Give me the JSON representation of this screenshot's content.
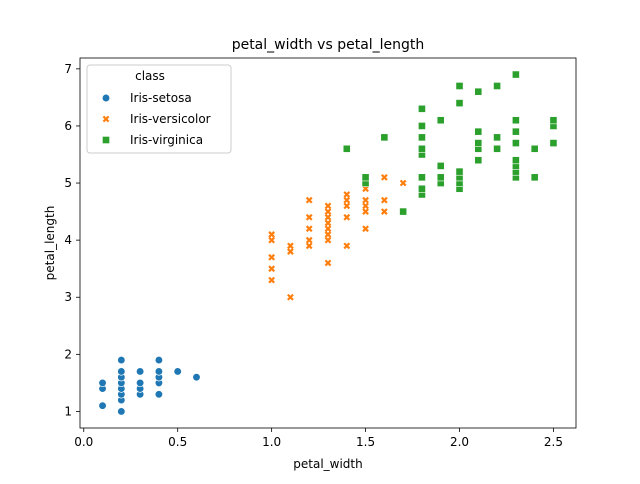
{
  "chart_data": {
    "type": "scatter",
    "title": "petal_width vs petal_length",
    "xlabel": "petal_width",
    "ylabel": "petal_length",
    "xlim": [
      -0.02,
      2.62
    ],
    "ylim": [
      0.71,
      7.19
    ],
    "xticks": [
      0.0,
      0.5,
      1.0,
      1.5,
      2.0,
      2.5
    ],
    "xtick_labels": [
      "0.0",
      "0.5",
      "1.0",
      "1.5",
      "2.0",
      "2.5"
    ],
    "yticks": [
      1,
      2,
      3,
      4,
      5,
      6,
      7
    ],
    "ytick_labels": [
      "1",
      "2",
      "3",
      "4",
      "5",
      "6",
      "7"
    ],
    "grid": false,
    "legend": {
      "title": "class",
      "placement": "top-left"
    },
    "series": [
      {
        "name": "Iris-setosa",
        "marker": "circle",
        "color": "#1f77b4",
        "points": [
          [
            0.1,
            1.1
          ],
          [
            0.1,
            1.4
          ],
          [
            0.1,
            1.5
          ],
          [
            0.2,
            1.0
          ],
          [
            0.2,
            1.2
          ],
          [
            0.2,
            1.3
          ],
          [
            0.2,
            1.4
          ],
          [
            0.2,
            1.5
          ],
          [
            0.2,
            1.6
          ],
          [
            0.2,
            1.7
          ],
          [
            0.2,
            1.9
          ],
          [
            0.3,
            1.3
          ],
          [
            0.3,
            1.4
          ],
          [
            0.3,
            1.5
          ],
          [
            0.3,
            1.7
          ],
          [
            0.4,
            1.3
          ],
          [
            0.4,
            1.5
          ],
          [
            0.4,
            1.6
          ],
          [
            0.4,
            1.7
          ],
          [
            0.4,
            1.9
          ],
          [
            0.5,
            1.7
          ],
          [
            0.6,
            1.6
          ]
        ]
      },
      {
        "name": "Iris-versicolor",
        "marker": "x",
        "color": "#ff7f0e",
        "points": [
          [
            1.0,
            3.3
          ],
          [
            1.0,
            3.5
          ],
          [
            1.0,
            3.7
          ],
          [
            1.0,
            4.0
          ],
          [
            1.0,
            4.1
          ],
          [
            1.1,
            3.0
          ],
          [
            1.1,
            3.8
          ],
          [
            1.1,
            3.9
          ],
          [
            1.2,
            3.9
          ],
          [
            1.2,
            4.0
          ],
          [
            1.2,
            4.2
          ],
          [
            1.2,
            4.4
          ],
          [
            1.2,
            4.7
          ],
          [
            1.3,
            3.6
          ],
          [
            1.3,
            4.0
          ],
          [
            1.3,
            4.1
          ],
          [
            1.3,
            4.2
          ],
          [
            1.3,
            4.3
          ],
          [
            1.3,
            4.4
          ],
          [
            1.3,
            4.5
          ],
          [
            1.3,
            4.6
          ],
          [
            1.4,
            3.9
          ],
          [
            1.4,
            4.4
          ],
          [
            1.4,
            4.6
          ],
          [
            1.4,
            4.7
          ],
          [
            1.4,
            4.8
          ],
          [
            1.5,
            4.2
          ],
          [
            1.5,
            4.5
          ],
          [
            1.5,
            4.6
          ],
          [
            1.5,
            4.7
          ],
          [
            1.5,
            4.9
          ],
          [
            1.5,
            5.0
          ],
          [
            1.6,
            4.5
          ],
          [
            1.6,
            4.7
          ],
          [
            1.6,
            5.1
          ],
          [
            1.7,
            5.0
          ]
        ]
      },
      {
        "name": "Iris-virginica",
        "marker": "square",
        "color": "#2ca02c",
        "points": [
          [
            1.4,
            5.6
          ],
          [
            1.5,
            5.0
          ],
          [
            1.5,
            5.1
          ],
          [
            1.6,
            5.8
          ],
          [
            1.7,
            4.5
          ],
          [
            1.8,
            4.8
          ],
          [
            1.8,
            4.9
          ],
          [
            1.8,
            5.1
          ],
          [
            1.8,
            5.5
          ],
          [
            1.8,
            5.6
          ],
          [
            1.8,
            5.8
          ],
          [
            1.8,
            6.0
          ],
          [
            1.8,
            6.3
          ],
          [
            1.9,
            5.0
          ],
          [
            1.9,
            5.1
          ],
          [
            1.9,
            5.3
          ],
          [
            1.9,
            6.1
          ],
          [
            2.0,
            4.9
          ],
          [
            2.0,
            5.0
          ],
          [
            2.0,
            5.1
          ],
          [
            2.0,
            5.2
          ],
          [
            2.0,
            6.4
          ],
          [
            2.0,
            6.7
          ],
          [
            2.1,
            5.4
          ],
          [
            2.1,
            5.6
          ],
          [
            2.1,
            5.7
          ],
          [
            2.1,
            5.9
          ],
          [
            2.1,
            6.6
          ],
          [
            2.2,
            5.6
          ],
          [
            2.2,
            5.8
          ],
          [
            2.2,
            6.7
          ],
          [
            2.3,
            5.1
          ],
          [
            2.3,
            5.2
          ],
          [
            2.3,
            5.3
          ],
          [
            2.3,
            5.4
          ],
          [
            2.3,
            5.7
          ],
          [
            2.3,
            5.9
          ],
          [
            2.3,
            6.1
          ],
          [
            2.3,
            6.9
          ],
          [
            2.4,
            5.1
          ],
          [
            2.4,
            5.6
          ],
          [
            2.5,
            5.7
          ],
          [
            2.5,
            6.0
          ],
          [
            2.5,
            6.1
          ]
        ]
      }
    ]
  }
}
